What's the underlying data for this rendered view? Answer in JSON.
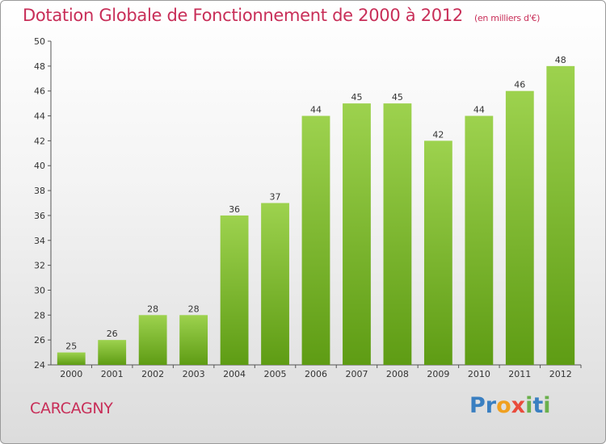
{
  "header": {
    "title": "Dotation Globale de Fonctionnement de 2000 à 2012",
    "subtitle": "(en milliers d'€)"
  },
  "footer": {
    "place": "CARCAGNY",
    "logo_text": "Proxiti"
  },
  "colors": {
    "title": "#c82e58",
    "bar_top": "#9dd24e",
    "bar_bottom": "#5e9c14",
    "axis": "#555555"
  },
  "chart_data": {
    "type": "bar",
    "categories": [
      "2000",
      "2001",
      "2002",
      "2003",
      "2004",
      "2005",
      "2006",
      "2007",
      "2008",
      "2009",
      "2010",
      "2011",
      "2012"
    ],
    "values": [
      25,
      26,
      28,
      28,
      36,
      37,
      44,
      45,
      45,
      42,
      44,
      46,
      48
    ],
    "ylim": [
      24,
      50
    ],
    "yticks": [
      24,
      26,
      28,
      30,
      32,
      34,
      36,
      38,
      40,
      42,
      44,
      46,
      48,
      50
    ],
    "grid": false,
    "legend": "none"
  }
}
